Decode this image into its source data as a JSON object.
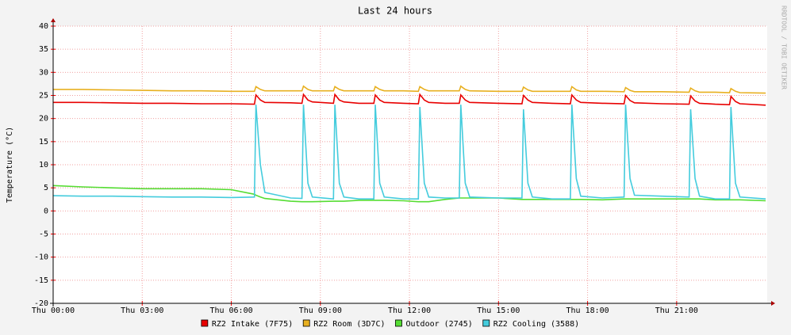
{
  "chart_data": {
    "type": "line",
    "title": "Last 24 hours",
    "y_label": "Temperature (°C)",
    "side_text": "RRDTOOL / TOBI OETIKER",
    "x": [
      0,
      1,
      2,
      3,
      4,
      5,
      6,
      6.78,
      6.83,
      6.98,
      7.13,
      8,
      8.38,
      8.43,
      8.58,
      8.73,
      9.44,
      9.49,
      9.64,
      9.79,
      10.3,
      10.8,
      10.85,
      11.0,
      11.15,
      11.8,
      12.3,
      12.35,
      12.5,
      12.65,
      13.2,
      13.68,
      13.73,
      13.88,
      14.03,
      15,
      15.79,
      15.84,
      15.99,
      16.14,
      16.8,
      17.42,
      17.47,
      17.62,
      17.77,
      18.5,
      19.23,
      19.28,
      19.43,
      19.58,
      20.5,
      21.42,
      21.47,
      21.62,
      21.77,
      22.3,
      22.78,
      22.83,
      22.98,
      23.13,
      24
    ],
    "xlim": [
      0,
      24.05
    ],
    "xticks": [
      {
        "value": 0,
        "label": "Thu 00:00"
      },
      {
        "value": 3,
        "label": "Thu 03:00"
      },
      {
        "value": 6,
        "label": "Thu 06:00"
      },
      {
        "value": 9,
        "label": "Thu 09:00"
      },
      {
        "value": 12,
        "label": "Thu 12:00"
      },
      {
        "value": 15,
        "label": "Thu 15:00"
      },
      {
        "value": 18,
        "label": "Thu 18:00"
      },
      {
        "value": 21,
        "label": "Thu 21:00"
      }
    ],
    "ylim": [
      -20,
      40
    ],
    "yticks": [
      -20,
      -15,
      -10,
      -5,
      0,
      5,
      10,
      15,
      20,
      25,
      30,
      35,
      40
    ],
    "grid": true,
    "series": [
      {
        "name": "RZ2 Intake (7F75)",
        "color": "#e80000",
        "values": [
          23.5,
          23.5,
          23.4,
          23.3,
          23.3,
          23.2,
          23.2,
          23.1,
          25.1,
          24,
          23.5,
          23.4,
          23.3,
          25.2,
          24,
          23.6,
          23.3,
          25.2,
          24,
          23.6,
          23.3,
          23.3,
          25.1,
          24,
          23.5,
          23.3,
          23.2,
          25.2,
          24,
          23.5,
          23.3,
          23.3,
          25.1,
          24,
          23.5,
          23.3,
          23.2,
          25.0,
          24,
          23.5,
          23.3,
          23.2,
          25.1,
          24,
          23.5,
          23.3,
          23.2,
          25.0,
          23.9,
          23.4,
          23.2,
          23.1,
          24.9,
          23.8,
          23.3,
          23.1,
          23.0,
          24.8,
          23.7,
          23.2,
          22.9
        ]
      },
      {
        "name": "RZ2 Room (3D7C)",
        "color": "#e8b020",
        "values": [
          26.3,
          26.3,
          26.2,
          26.1,
          26.0,
          26.0,
          25.9,
          25.9,
          26.9,
          26.3,
          26.0,
          26.0,
          26.0,
          27.0,
          26.3,
          26.0,
          26.0,
          26.9,
          26.3,
          26.0,
          26.0,
          26.0,
          26.9,
          26.3,
          26.0,
          26.0,
          25.9,
          26.9,
          26.3,
          26.0,
          26.0,
          26.0,
          27.0,
          26.3,
          26.0,
          25.9,
          25.9,
          26.8,
          26.2,
          25.9,
          25.9,
          25.9,
          26.9,
          26.2,
          25.9,
          25.9,
          25.8,
          26.7,
          26.1,
          25.8,
          25.8,
          25.7,
          26.6,
          26.0,
          25.7,
          25.7,
          25.6,
          26.5,
          25.9,
          25.6,
          25.5
        ]
      },
      {
        "name": "Outdoor (2745)",
        "color": "#55dd33",
        "values": [
          5.5,
          5.2,
          5.0,
          4.8,
          4.8,
          4.8,
          4.6,
          3.6,
          3.4,
          3.0,
          2.7,
          2.1,
          2.0,
          2.0,
          2.0,
          2.0,
          2.1,
          2.1,
          2.1,
          2.1,
          2.3,
          2.3,
          2.3,
          2.3,
          2.3,
          2.2,
          2.0,
          2.0,
          2.0,
          2.0,
          2.5,
          2.8,
          2.8,
          2.8,
          2.8,
          2.8,
          2.5,
          2.5,
          2.5,
          2.5,
          2.5,
          2.5,
          2.5,
          2.5,
          2.5,
          2.4,
          2.6,
          2.6,
          2.6,
          2.6,
          2.6,
          2.6,
          2.6,
          2.6,
          2.6,
          2.4,
          2.4,
          2.4,
          2.4,
          2.4,
          2.2
        ]
      },
      {
        "name": "RZ2 Cooling (3588)",
        "color": "#44ccdd",
        "values": [
          3.3,
          3.2,
          3.2,
          3.1,
          3.0,
          3.0,
          2.9,
          3.0,
          23,
          10,
          4,
          2.8,
          2.7,
          23,
          6,
          3.0,
          2.6,
          23,
          6,
          3.0,
          2.6,
          2.6,
          23,
          6,
          3.0,
          2.6,
          2.6,
          22.5,
          6,
          3.0,
          2.8,
          2.8,
          23,
          6,
          3.0,
          2.8,
          2.8,
          22,
          6,
          3.0,
          2.6,
          2.6,
          23,
          7,
          3.2,
          2.8,
          3.0,
          23,
          7,
          3.4,
          3.2,
          3.0,
          22,
          7,
          3.2,
          2.6,
          2.6,
          22.5,
          6,
          3.0,
          2.6
        ]
      }
    ]
  }
}
